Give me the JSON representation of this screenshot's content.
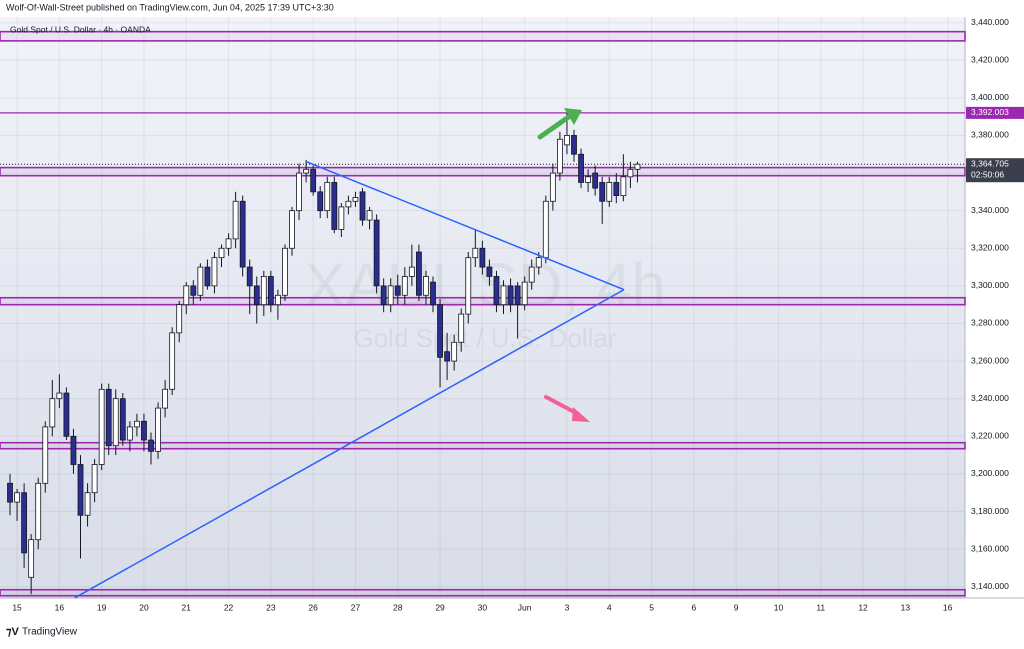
{
  "header": "Wolf-Of-Wall-Street published on TradingView.com, Jun 04, 2025 17:39 UTC+3:30",
  "footer": "TradingView",
  "chart_data": {
    "type": "candlestick",
    "title": "Gold Spot / U.S. Dollar · 4h · OANDA",
    "watermark": "XAUUSD, 4h",
    "watermark_subtitle": "Gold Spot / U.S. Dollar",
    "up_color": "#ffffff",
    "down_color": "#2a2e8f",
    "candles": [
      [
        3195,
        3200,
        3178,
        3185
      ],
      [
        3185,
        3192,
        3175,
        3190
      ],
      [
        3190,
        3195,
        3150,
        3158
      ],
      [
        3145,
        3168,
        3136,
        3165
      ],
      [
        3165,
        3198,
        3160,
        3195
      ],
      [
        3195,
        3228,
        3190,
        3225
      ],
      [
        3225,
        3250,
        3220,
        3240
      ],
      [
        3240,
        3253,
        3235,
        3243
      ],
      [
        3243,
        3246,
        3218,
        3220
      ],
      [
        3220,
        3224,
        3200,
        3205
      ],
      [
        3205,
        3210,
        3155,
        3178
      ],
      [
        3178,
        3195,
        3172,
        3190
      ],
      [
        3190,
        3208,
        3185,
        3205
      ],
      [
        3205,
        3248,
        3202,
        3245
      ],
      [
        3245,
        3248,
        3210,
        3215
      ],
      [
        3215,
        3245,
        3210,
        3240
      ],
      [
        3240,
        3243,
        3215,
        3218
      ],
      [
        3218,
        3228,
        3212,
        3225
      ],
      [
        3225,
        3232,
        3220,
        3228
      ],
      [
        3228,
        3232,
        3212,
        3218
      ],
      [
        3218,
        3222,
        3205,
        3212
      ],
      [
        3212,
        3238,
        3208,
        3235
      ],
      [
        3235,
        3250,
        3230,
        3245
      ],
      [
        3245,
        3278,
        3242,
        3275
      ],
      [
        3275,
        3292,
        3270,
        3290
      ],
      [
        3290,
        3302,
        3285,
        3300
      ],
      [
        3300,
        3303,
        3290,
        3295
      ],
      [
        3295,
        3312,
        3292,
        3310
      ],
      [
        3310,
        3314,
        3298,
        3300
      ],
      [
        3300,
        3318,
        3296,
        3315
      ],
      [
        3315,
        3322,
        3310,
        3320
      ],
      [
        3320,
        3328,
        3316,
        3325
      ],
      [
        3325,
        3350,
        3320,
        3345
      ],
      [
        3345,
        3348,
        3305,
        3310
      ],
      [
        3310,
        3314,
        3285,
        3300
      ],
      [
        3300,
        3305,
        3280,
        3290
      ],
      [
        3290,
        3308,
        3284,
        3305
      ],
      [
        3305,
        3308,
        3286,
        3290
      ],
      [
        3290,
        3298,
        3282,
        3295
      ],
      [
        3295,
        3322,
        3292,
        3320
      ],
      [
        3320,
        3342,
        3316,
        3340
      ],
      [
        3340,
        3365,
        3335,
        3360
      ],
      [
        3360,
        3367,
        3355,
        3362
      ],
      [
        3362,
        3364,
        3348,
        3350
      ],
      [
        3350,
        3353,
        3336,
        3340
      ],
      [
        3340,
        3358,
        3336,
        3355
      ],
      [
        3355,
        3358,
        3328,
        3330
      ],
      [
        3330,
        3344,
        3326,
        3342
      ],
      [
        3342,
        3348,
        3338,
        3345
      ],
      [
        3345,
        3350,
        3342,
        3347
      ],
      [
        3350,
        3352,
        3332,
        3335
      ],
      [
        3335,
        3342,
        3330,
        3340
      ],
      [
        3335,
        3338,
        3296,
        3300
      ],
      [
        3300,
        3304,
        3286,
        3290
      ],
      [
        3290,
        3304,
        3286,
        3300
      ],
      [
        3300,
        3306,
        3290,
        3295
      ],
      [
        3295,
        3310,
        3290,
        3305
      ],
      [
        3305,
        3322,
        3300,
        3310
      ],
      [
        3318,
        3322,
        3292,
        3295
      ],
      [
        3295,
        3308,
        3290,
        3305
      ],
      [
        3302,
        3305,
        3286,
        3290
      ],
      [
        3290,
        3293,
        3246,
        3262
      ],
      [
        3265,
        3275,
        3250,
        3260
      ],
      [
        3260,
        3274,
        3255,
        3270
      ],
      [
        3270,
        3288,
        3265,
        3285
      ],
      [
        3285,
        3318,
        3280,
        3315
      ],
      [
        3315,
        3330,
        3310,
        3320
      ],
      [
        3320,
        3324,
        3306,
        3310
      ],
      [
        3310,
        3314,
        3300,
        3305
      ],
      [
        3305,
        3308,
        3286,
        3290
      ],
      [
        3290,
        3303,
        3285,
        3300
      ],
      [
        3300,
        3304,
        3286,
        3290
      ],
      [
        3300,
        3302,
        3272,
        3290
      ],
      [
        3290,
        3305,
        3287,
        3302
      ],
      [
        3302,
        3314,
        3298,
        3310
      ],
      [
        3310,
        3318,
        3306,
        3315
      ],
      [
        3315,
        3348,
        3312,
        3345
      ],
      [
        3345,
        3365,
        3340,
        3360
      ],
      [
        3360,
        3382,
        3356,
        3378
      ],
      [
        3375,
        3392,
        3370,
        3380
      ],
      [
        3380,
        3383,
        3366,
        3370
      ],
      [
        3370,
        3373,
        3352,
        3355
      ],
      [
        3355,
        3362,
        3350,
        3358
      ],
      [
        3360,
        3364,
        3348,
        3352
      ],
      [
        3355,
        3358,
        3333,
        3345
      ],
      [
        3345,
        3358,
        3342,
        3355
      ],
      [
        3355,
        3360,
        3344,
        3348
      ],
      [
        3348,
        3370,
        3345,
        3358
      ],
      [
        3358,
        3366,
        3352,
        3362
      ],
      [
        3362,
        3366,
        3355,
        3364.705
      ]
    ],
    "xlim": [
      -1.42,
      135.46
    ],
    "xticks": [
      {
        "value": 1,
        "label": "15"
      },
      {
        "value": 7,
        "label": "16"
      },
      {
        "value": 13,
        "label": "19"
      },
      {
        "value": 19,
        "label": "20"
      },
      {
        "value": 25,
        "label": "21"
      },
      {
        "value": 31,
        "label": "22"
      },
      {
        "value": 37,
        "label": "23"
      },
      {
        "value": 43,
        "label": "26"
      },
      {
        "value": 49,
        "label": "27"
      },
      {
        "value": 55,
        "label": "28"
      },
      {
        "value": 61,
        "label": "29"
      },
      {
        "value": 67,
        "label": "30"
      },
      {
        "value": 73,
        "label": "Jun"
      },
      {
        "value": 79,
        "label": "3"
      },
      {
        "value": 85,
        "label": "4"
      },
      {
        "value": 91,
        "label": "5"
      },
      {
        "value": 97,
        "label": "6"
      },
      {
        "value": 103,
        "label": "9"
      },
      {
        "value": 109,
        "label": "10"
      },
      {
        "value": 115,
        "label": "11"
      },
      {
        "value": 121,
        "label": "12"
      },
      {
        "value": 127,
        "label": "13"
      },
      {
        "value": 133,
        "label": "16"
      }
    ],
    "ylim": [
      3134,
      3443
    ],
    "yticks": [
      {
        "value": 3140,
        "label": "3,140.000"
      },
      {
        "value": 3160,
        "label": "3,160.000"
      },
      {
        "value": 3180,
        "label": "3,180.000"
      },
      {
        "value": 3200,
        "label": "3,200.000"
      },
      {
        "value": 3220,
        "label": "3,220.000"
      },
      {
        "value": 3240,
        "label": "3,240.000"
      },
      {
        "value": 3260,
        "label": "3,260.000"
      },
      {
        "value": 3280,
        "label": "3,280.000"
      },
      {
        "value": 3300,
        "label": "3,300.000"
      },
      {
        "value": 3320,
        "label": "3,320.000"
      },
      {
        "value": 3340,
        "label": "3,340.000"
      },
      {
        "value": 3360,
        "label": "3,360.000"
      },
      {
        "value": 3380,
        "label": "3,380.000"
      },
      {
        "value": 3400,
        "label": "3,400.000"
      },
      {
        "value": 3420,
        "label": "3,420.000"
      },
      {
        "value": 3440,
        "label": "3,440.000"
      }
    ],
    "grid": true,
    "zone_color": "#9c27b0",
    "zones": [
      [
        3430.3,
        3435.2
      ],
      [
        3358.6,
        3362.9
      ],
      [
        3290,
        3293.7
      ],
      [
        3213.4,
        3216.6
      ],
      [
        3135.2,
        3138.4
      ]
    ],
    "level": {
      "value": 3392.003,
      "label": "3,392.003"
    },
    "last_price": {
      "value": 3364.705,
      "label": "3,364.705",
      "countdown": "02:50:06"
    },
    "trendline_color": "#2962ff",
    "trendlines": [
      [
        [
          9.2,
          3134.1
        ],
        [
          87.1,
          3298
        ]
      ],
      [
        [
          42,
          3366.1
        ],
        [
          87.1,
          3298
        ]
      ]
    ]
  }
}
